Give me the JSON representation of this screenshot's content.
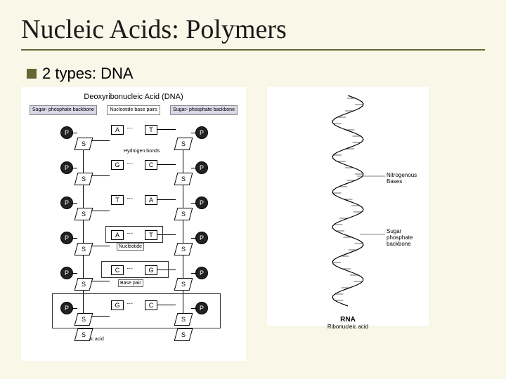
{
  "title": "Nucleic Acids: Polymers",
  "bullet": "2 types: DNA",
  "rna_label": "RNA",
  "dna": {
    "header": "Deoxyribonucleic Acid (DNA)",
    "label_left": "Sugar-\nphosphate\nbackbone",
    "label_mid": "Nucleotide\nbase pairs",
    "label_right": "Sugar-\nphosphate\nbackbone",
    "ann_hbonds": "Hydrogen\nbonds",
    "ann_nucleotide": "Nucleotide",
    "ann_basepair": "Base pair",
    "ann_na": "Nucleic acid",
    "pairs": [
      {
        "l": "A",
        "r": "T"
      },
      {
        "l": "G",
        "r": "C"
      },
      {
        "l": "T",
        "r": "A"
      },
      {
        "l": "A",
        "r": "T"
      },
      {
        "l": "C",
        "r": "G"
      },
      {
        "l": "G",
        "r": "C"
      }
    ]
  },
  "rna": {
    "title": "RNA",
    "sub": "Ribonucleic acid",
    "nitro": "Nitrogenous\nBases",
    "backbone": "Sugar\nphosphate\nbackbone",
    "turns": 6
  },
  "colors": {
    "bg": "#f8f7e8",
    "accent": "#666633",
    "panel": "#ffffff"
  }
}
